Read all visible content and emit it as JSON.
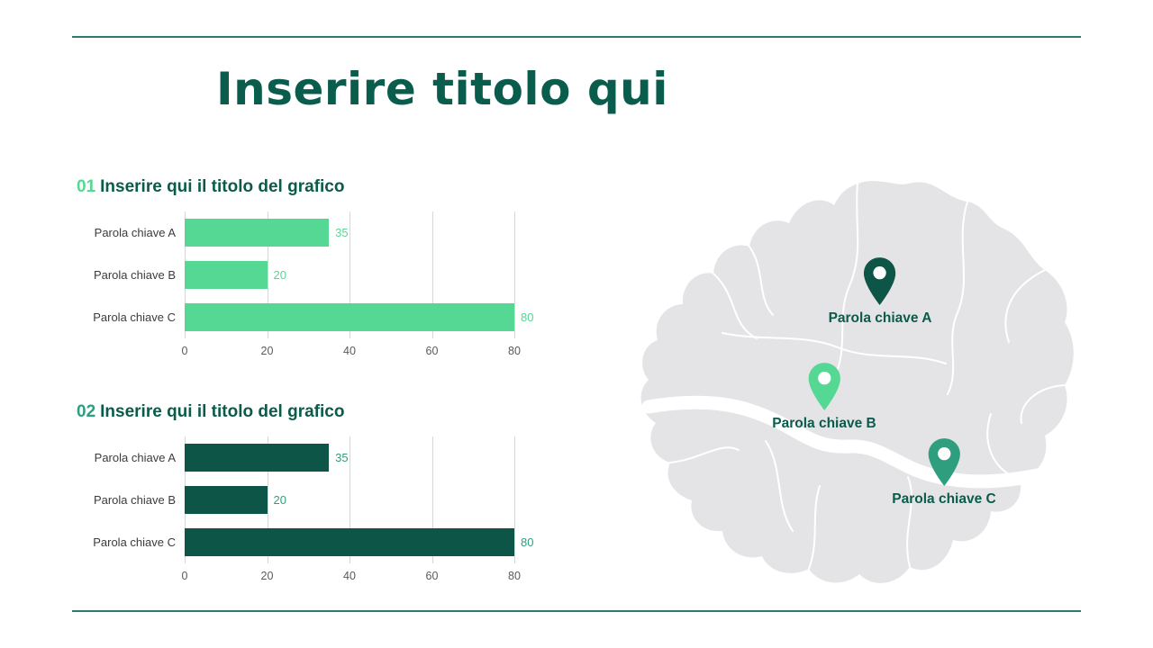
{
  "slide": {
    "title": "Inserire titolo qui"
  },
  "colors": {
    "dark_green": "#0a5c4d",
    "light_green": "#55d893",
    "teal_green": "#2f9e7e",
    "rule_line": "#2b7c6c",
    "map_fill": "#e4e4e7",
    "gridline": "#d7d7d7",
    "tick_text": "#5a5a5a",
    "category_text": "#3c3c3c"
  },
  "chart_data": [
    {
      "type": "bar",
      "orientation": "horizontal",
      "number": "01",
      "number_color": "#55d893",
      "title": "Inserire qui il titolo del grafico",
      "categories": [
        "Parola chiave A",
        "Parola chiave B",
        "Parola chiave C"
      ],
      "values": [
        35,
        20,
        80
      ],
      "x_ticks": [
        0,
        20,
        40,
        60,
        80
      ],
      "xlim": [
        0,
        80
      ],
      "bar_color": "#55d893",
      "value_label_color": "#55d893",
      "grid": true,
      "legend": "none"
    },
    {
      "type": "bar",
      "orientation": "horizontal",
      "number": "02",
      "number_color": "#2f9e7e",
      "title": "Inserire qui il titolo del grafico",
      "categories": [
        "Parola chiave A",
        "Parola chiave B",
        "Parola chiave C"
      ],
      "values": [
        35,
        20,
        80
      ],
      "x_ticks": [
        0,
        20,
        40,
        60,
        80
      ],
      "xlim": [
        0,
        80
      ],
      "bar_color": "#0d5547",
      "value_label_color": "#2f9e7e",
      "grid": true,
      "legend": "none"
    }
  ],
  "map": {
    "description": "city-districts-map",
    "pins": [
      {
        "label": "Parola chiave A",
        "color": "#0d5547"
      },
      {
        "label": "Parola chiave B",
        "color": "#55d893"
      },
      {
        "label": "Parola chiave C",
        "color": "#2f9e7e"
      }
    ]
  }
}
